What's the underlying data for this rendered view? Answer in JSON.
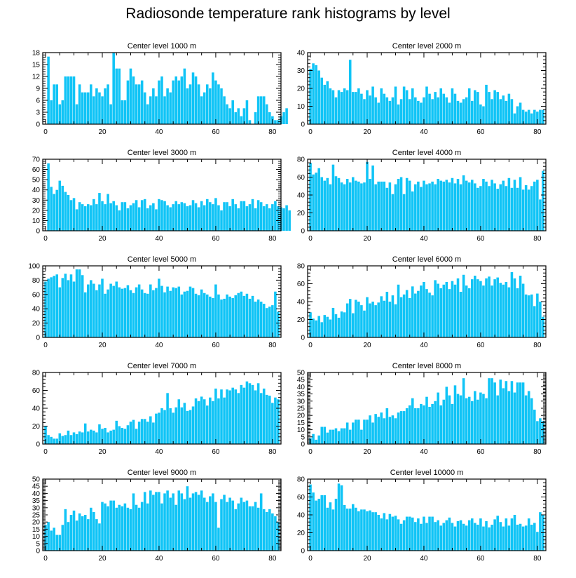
{
  "title": "Radiosonde temperature rank histograms by level",
  "bar_color": "#10c4f6",
  "chart_data": [
    {
      "type": "bar",
      "title": "Center level 1000 m",
      "xlim": [
        -1,
        83
      ],
      "ylim": [
        0,
        18
      ],
      "xticks": [
        0,
        20,
        40,
        60,
        80
      ],
      "yticks": [
        0,
        3,
        6,
        9,
        12,
        15,
        18
      ],
      "x_start": 1,
      "values": [
        17,
        6,
        10,
        10,
        5,
        6,
        12,
        12,
        12,
        12,
        5,
        10,
        8,
        8,
        8,
        10,
        7,
        9,
        8,
        7,
        9,
        10,
        5,
        18,
        14,
        14,
        6,
        6,
        11,
        14,
        12,
        10,
        10,
        11,
        8,
        5,
        7,
        9,
        7,
        11,
        12,
        7,
        9,
        8,
        11,
        12,
        11,
        12,
        14,
        9,
        10,
        13,
        12,
        10,
        7,
        8,
        10,
        9,
        13,
        11,
        10,
        9,
        7,
        5,
        4,
        6,
        3,
        4,
        2,
        4,
        6,
        1,
        0,
        3,
        7,
        7,
        7,
        5,
        3,
        2,
        1,
        1,
        2,
        3,
        4
      ],
      "values_note": "bar 0 is not drawn; values start at rank 1"
    },
    {
      "type": "bar",
      "title": "Center level 2000 m",
      "xlim": [
        -1,
        83
      ],
      "ylim": [
        0,
        40
      ],
      "xticks": [
        0,
        20,
        40,
        60,
        80
      ],
      "yticks": [
        0,
        10,
        20,
        30,
        40
      ],
      "x_start": 0,
      "values": [
        31,
        34,
        33,
        30,
        26,
        22,
        24,
        20,
        19,
        15,
        19,
        18,
        20,
        19,
        36,
        18,
        18,
        20,
        17,
        14,
        19,
        16,
        21,
        15,
        12,
        20,
        17,
        15,
        13,
        15,
        21,
        11,
        14,
        21,
        19,
        14,
        20,
        15,
        13,
        12,
        15,
        21,
        17,
        14,
        18,
        15,
        20,
        17,
        15,
        12,
        20,
        17,
        13,
        12,
        14,
        15,
        20,
        13,
        19,
        18,
        11,
        10,
        22,
        18,
        14,
        19,
        18,
        14,
        16,
        13,
        17,
        14,
        6,
        10,
        12,
        8,
        7,
        8,
        6,
        8,
        7,
        8,
        8
      ]
    },
    {
      "type": "bar",
      "title": "Center level 3000 m",
      "xlim": [
        -1,
        83
      ],
      "ylim": [
        0,
        70
      ],
      "xticks": [
        0,
        20,
        40,
        60,
        80
      ],
      "yticks": [
        0,
        10,
        20,
        30,
        40,
        50,
        60,
        70
      ],
      "x_start": 1,
      "values": [
        66,
        43,
        36,
        40,
        49,
        44,
        38,
        35,
        30,
        32,
        21,
        28,
        26,
        24,
        26,
        25,
        31,
        26,
        37,
        29,
        26,
        36,
        27,
        29,
        25,
        20,
        28,
        28,
        22,
        25,
        27,
        30,
        23,
        30,
        31,
        22,
        25,
        27,
        21,
        31,
        30,
        29,
        25,
        23,
        26,
        29,
        26,
        28,
        27,
        24,
        25,
        30,
        27,
        23,
        29,
        25,
        31,
        28,
        26,
        32,
        25,
        20,
        28,
        28,
        24,
        31,
        26,
        22,
        29,
        29,
        24,
        26,
        31,
        22,
        30,
        28,
        24,
        26,
        22,
        26,
        29,
        24,
        23,
        22,
        25,
        20
      ]
    },
    {
      "type": "bar",
      "title": "Center level 4000 m",
      "xlim": [
        -1,
        83
      ],
      "ylim": [
        0,
        80
      ],
      "xticks": [
        0,
        20,
        40,
        60,
        80
      ],
      "yticks": [
        0,
        20,
        40,
        60,
        80
      ],
      "x_start": 0,
      "values": [
        76,
        63,
        65,
        70,
        60,
        56,
        59,
        52,
        74,
        61,
        59,
        54,
        52,
        58,
        54,
        60,
        56,
        55,
        53,
        54,
        77,
        58,
        73,
        52,
        55,
        55,
        55,
        48,
        54,
        41,
        52,
        58,
        60,
        41,
        59,
        56,
        44,
        52,
        55,
        49,
        56,
        52,
        53,
        55,
        52,
        58,
        56,
        55,
        57,
        54,
        59,
        53,
        58,
        52,
        62,
        56,
        54,
        57,
        53,
        48,
        50,
        58,
        55,
        50,
        57,
        53,
        47,
        52,
        56,
        50,
        59,
        48,
        57,
        48,
        60,
        46,
        51,
        46,
        50,
        55,
        57,
        35,
        67
      ]
    },
    {
      "type": "bar",
      "title": "Center level 5000 m",
      "xlim": [
        -1,
        83
      ],
      "ylim": [
        0,
        100
      ],
      "xticks": [
        0,
        20,
        40,
        60,
        80
      ],
      "yticks": [
        0,
        20,
        40,
        60,
        80,
        100
      ],
      "x_start": 0,
      "values": [
        78,
        82,
        84,
        86,
        88,
        70,
        83,
        89,
        80,
        88,
        78,
        95,
        95,
        87,
        63,
        74,
        80,
        75,
        66,
        74,
        82,
        61,
        67,
        75,
        72,
        78,
        70,
        68,
        69,
        73,
        66,
        62,
        70,
        74,
        67,
        62,
        61,
        74,
        66,
        69,
        82,
        72,
        63,
        71,
        65,
        70,
        69,
        71,
        60,
        64,
        65,
        71,
        69,
        61,
        59,
        67,
        62,
        60,
        57,
        55,
        74,
        60,
        53,
        54,
        60,
        57,
        55,
        59,
        62,
        64,
        58,
        61,
        54,
        58,
        50,
        53,
        50,
        47,
        41,
        43,
        45,
        64,
        36
      ]
    },
    {
      "type": "bar",
      "title": "Center level 6000 m",
      "xlim": [
        -1,
        83
      ],
      "ylim": [
        0,
        80
      ],
      "xticks": [
        0,
        20,
        40,
        60,
        80
      ],
      "yticks": [
        0,
        20,
        40,
        60,
        80
      ],
      "x_start": 0,
      "values": [
        28,
        21,
        19,
        24,
        17,
        25,
        23,
        20,
        33,
        26,
        22,
        29,
        28,
        38,
        43,
        27,
        42,
        40,
        36,
        30,
        45,
        38,
        40,
        36,
        39,
        46,
        41,
        51,
        40,
        47,
        37,
        59,
        45,
        48,
        53,
        44,
        57,
        49,
        52,
        58,
        62,
        54,
        50,
        47,
        64,
        60,
        55,
        59,
        62,
        54,
        63,
        59,
        66,
        51,
        70,
        58,
        55,
        65,
        69,
        65,
        63,
        58,
        66,
        68,
        58,
        65,
        67,
        61,
        59,
        62,
        56,
        73,
        66,
        55,
        69,
        60,
        48,
        47,
        48,
        35,
        49,
        40,
        23
      ]
    },
    {
      "type": "bar",
      "title": "Center level 7000 m",
      "xlim": [
        -1,
        83
      ],
      "ylim": [
        0,
        80
      ],
      "xticks": [
        0,
        20,
        40,
        60,
        80
      ],
      "yticks": [
        0,
        20,
        40,
        60,
        80
      ],
      "x_start": 0,
      "values": [
        20,
        10,
        8,
        6,
        6,
        12,
        9,
        10,
        15,
        10,
        13,
        11,
        14,
        13,
        23,
        14,
        16,
        15,
        13,
        22,
        17,
        18,
        13,
        15,
        16,
        26,
        20,
        18,
        17,
        21,
        25,
        27,
        17,
        25,
        28,
        28,
        25,
        31,
        24,
        34,
        35,
        40,
        38,
        57,
        40,
        35,
        41,
        50,
        41,
        46,
        37,
        38,
        42,
        51,
        48,
        53,
        50,
        43,
        52,
        48,
        62,
        51,
        61,
        52,
        61,
        60,
        63,
        61,
        57,
        66,
        63,
        70,
        68,
        66,
        60,
        68,
        57,
        62,
        55,
        54,
        46,
        52,
        50
      ]
    },
    {
      "type": "bar",
      "title": "Center level 8000 m",
      "xlim": [
        -1,
        83
      ],
      "ylim": [
        0,
        50
      ],
      "xticks": [
        0,
        20,
        40,
        60,
        80
      ],
      "yticks": [
        0,
        5,
        10,
        15,
        20,
        25,
        30,
        35,
        40,
        45,
        50
      ],
      "x_start": 0,
      "values": [
        4,
        7,
        3,
        6,
        12,
        12,
        8,
        10,
        10,
        11,
        9,
        11,
        11,
        15,
        10,
        15,
        17,
        17,
        10,
        17,
        17,
        20,
        15,
        21,
        19,
        22,
        18,
        25,
        19,
        20,
        18,
        22,
        23,
        23,
        25,
        27,
        32,
        25,
        25,
        28,
        27,
        33,
        26,
        28,
        30,
        36,
        27,
        31,
        40,
        34,
        28,
        41,
        35,
        34,
        46,
        32,
        33,
        30,
        37,
        31,
        36,
        35,
        32,
        46,
        46,
        43,
        34,
        45,
        39,
        44,
        37,
        44,
        36,
        43,
        43,
        43,
        34,
        37,
        32,
        24,
        16,
        18,
        16
      ]
    },
    {
      "type": "bar",
      "title": "Center level 9000 m",
      "xlim": [
        -1,
        83
      ],
      "ylim": [
        0,
        50
      ],
      "xticks": [
        0,
        20,
        40,
        60,
        80
      ],
      "yticks": [
        0,
        5,
        10,
        15,
        20,
        25,
        30,
        35,
        40,
        45,
        50
      ],
      "x_start": 0,
      "values": [
        18,
        20,
        14,
        16,
        11,
        11,
        18,
        29,
        20,
        25,
        28,
        21,
        26,
        24,
        25,
        22,
        30,
        27,
        22,
        19,
        34,
        33,
        31,
        35,
        35,
        30,
        32,
        31,
        33,
        30,
        29,
        40,
        32,
        30,
        34,
        41,
        33,
        42,
        39,
        41,
        41,
        33,
        40,
        42,
        37,
        40,
        32,
        42,
        40,
        36,
        45,
        37,
        40,
        41,
        39,
        42,
        37,
        34,
        38,
        40,
        34,
        16,
        36,
        39,
        34,
        37,
        35,
        29,
        33,
        37,
        34,
        35,
        31,
        31,
        34,
        30,
        40,
        29,
        27,
        29,
        26,
        24,
        20
      ]
    },
    {
      "type": "bar",
      "title": "Center level 10000 m",
      "xlim": [
        -1,
        83
      ],
      "ylim": [
        0,
        80
      ],
      "xticks": [
        0,
        20,
        40,
        60,
        80
      ],
      "yticks": [
        0,
        20,
        40,
        60,
        80
      ],
      "x_start": 0,
      "values": [
        74,
        65,
        56,
        58,
        62,
        62,
        48,
        54,
        46,
        58,
        75,
        73,
        51,
        47,
        47,
        52,
        48,
        44,
        46,
        46,
        44,
        45,
        43,
        43,
        40,
        36,
        42,
        35,
        41,
        38,
        39,
        35,
        30,
        34,
        38,
        38,
        37,
        32,
        36,
        30,
        38,
        31,
        38,
        38,
        32,
        34,
        28,
        31,
        34,
        37,
        31,
        27,
        33,
        34,
        30,
        28,
        34,
        36,
        31,
        29,
        36,
        27,
        33,
        26,
        29,
        35,
        39,
        32,
        27,
        36,
        28,
        36,
        40,
        29,
        30,
        27,
        28,
        36,
        29,
        31,
        21,
        43,
        40
      ]
    }
  ]
}
